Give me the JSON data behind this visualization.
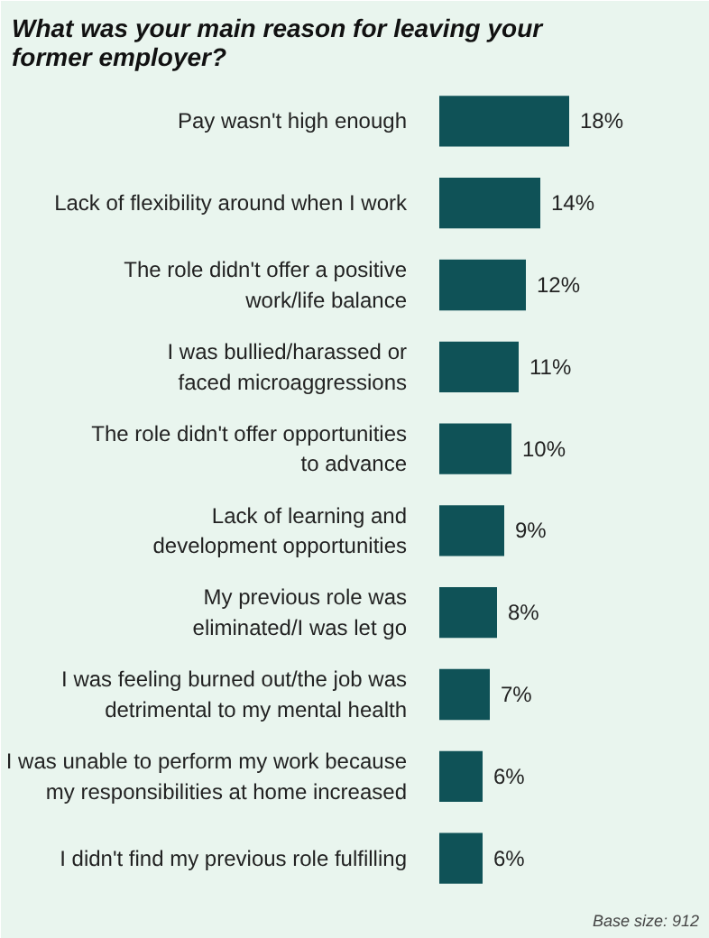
{
  "chart_data": {
    "type": "bar",
    "orientation": "horizontal",
    "title": "What was your main reason for leaving your\nformer employer?",
    "categories": [
      "Pay wasn't high enough",
      "Lack of flexibility around when I work",
      "The role didn't offer a positive\nwork/life balance",
      "I was bullied/harassed or\nfaced microaggressions",
      "The role didn't offer opportunities\nto advance",
      "Lack of learning and\ndevelopment opportunities",
      "My previous role was\neliminated/I was let go",
      "I was feeling burned out/the job was\ndetrimental to my mental health",
      "I was unable to perform my work because\nmy responsibilities at home increased",
      "I didn't find my previous role fulfilling"
    ],
    "values": [
      18,
      14,
      12,
      11,
      10,
      9,
      8,
      7,
      6,
      6
    ],
    "value_labels": [
      "18%",
      "14%",
      "12%",
      "11%",
      "10%",
      "9%",
      "8%",
      "7%",
      "6%",
      "6%"
    ],
    "color": "#0f5257",
    "xlim": [
      0,
      36
    ],
    "tick_labels": "y",
    "grid": false,
    "annotations": [
      "Base size: 912"
    ]
  }
}
